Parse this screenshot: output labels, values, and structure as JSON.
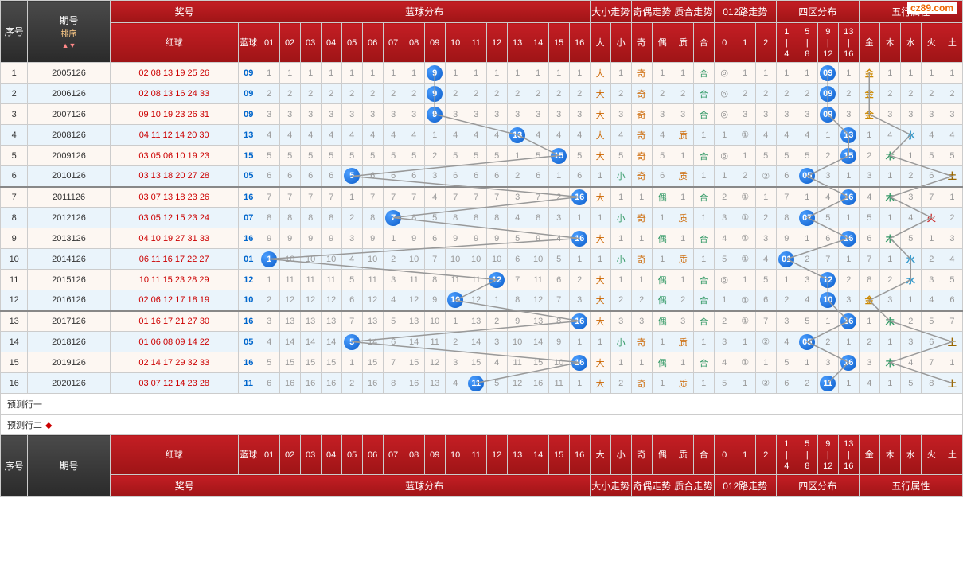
{
  "watermark": "cz89.com",
  "header": {
    "seq": "序号",
    "period": "期号",
    "sort": "排序",
    "jianghao": "奖号",
    "red": "红球",
    "blue": "蓝球",
    "bluedist": "蓝球分布",
    "daxiao": "大小走势",
    "jiou": "奇偶走势",
    "zhihe": "质合走势",
    "lu012": "012路走势",
    "siqu": "四区分布",
    "wuxing": "五行属性",
    "da": "大",
    "xiao": "小",
    "ji": "奇",
    "ou": "偶",
    "zhi": "质",
    "he": "合",
    "q1": "1\n|\n4",
    "q2": "5\n|\n8",
    "q3": "9\n|\n12",
    "q4": "13\n|\n16",
    "jin": "金",
    "mu": "木",
    "shui": "水",
    "huo": "火",
    "tu": "土",
    "pred1": "预测行一",
    "pred2": "预测行二"
  },
  "cols": {
    "blue": [
      "01",
      "02",
      "03",
      "04",
      "05",
      "06",
      "07",
      "08",
      "09",
      "10",
      "11",
      "12",
      "13",
      "14",
      "15",
      "16"
    ],
    "lu": [
      "0",
      "1",
      "2"
    ]
  },
  "rows": [
    {
      "seq": 1,
      "period": "2005126",
      "red": "02 08 13 19 25 26",
      "blue": "09",
      "ball": 9,
      "dx": "大",
      "jo": "奇",
      "zh": "合",
      "lu": 0,
      "quad": 3,
      "wx": "金"
    },
    {
      "seq": 2,
      "period": "2006126",
      "red": "02 08 13 16 24 33",
      "blue": "09",
      "ball": 9,
      "dx": "大",
      "jo": "奇",
      "zh": "合",
      "lu": 0,
      "quad": 3,
      "wx": "金"
    },
    {
      "seq": 3,
      "period": "2007126",
      "red": "09 10 19 23 26 31",
      "blue": "09",
      "ball": 9,
      "dx": "大",
      "jo": "奇",
      "zh": "合",
      "lu": 0,
      "quad": 3,
      "wx": "金"
    },
    {
      "seq": 4,
      "period": "2008126",
      "red": "04 11 12 14 20 30",
      "blue": "13",
      "ball": 13,
      "dx": "大",
      "jo": "奇",
      "zh": "质",
      "lu": 1,
      "quad": 4,
      "wx": "水"
    },
    {
      "seq": 5,
      "period": "2009126",
      "red": "03 05 06 10 19 23",
      "blue": "15",
      "ball": 15,
      "dx": "大",
      "jo": "奇",
      "zh": "合",
      "lu": 0,
      "quad": 4,
      "wx": "木"
    },
    {
      "seq": 6,
      "period": "2010126",
      "red": "03 13 18 20 27 28",
      "blue": "05",
      "ball": 5,
      "dx": "小",
      "jo": "奇",
      "zh": "质",
      "lu": 2,
      "quad": 2,
      "wx": "土"
    },
    {
      "seq": 7,
      "period": "2011126",
      "red": "03 07 13 18 23 26",
      "blue": "16",
      "ball": 16,
      "dx": "大",
      "jo": "偶",
      "zh": "合",
      "lu": 1,
      "quad": 4,
      "wx": "木"
    },
    {
      "seq": 8,
      "period": "2012126",
      "red": "03 05 12 15 23 24",
      "blue": "07",
      "ball": 7,
      "dx": "小",
      "jo": "奇",
      "zh": "质",
      "lu": 1,
      "quad": 2,
      "wx": "火"
    },
    {
      "seq": 9,
      "period": "2013126",
      "red": "04 10 19 27 31 33",
      "blue": "16",
      "ball": 16,
      "dx": "大",
      "jo": "偶",
      "zh": "合",
      "lu": 1,
      "quad": 4,
      "wx": "木"
    },
    {
      "seq": 10,
      "period": "2014126",
      "red": "06 11 16 17 22 27",
      "blue": "01",
      "ball": 1,
      "dx": "小",
      "jo": "奇",
      "zh": "质",
      "lu": 1,
      "quad": 1,
      "wx": "水"
    },
    {
      "seq": 11,
      "period": "2015126",
      "red": "10 11 15 23 28 29",
      "blue": "12",
      "ball": 12,
      "dx": "大",
      "jo": "偶",
      "zh": "合",
      "lu": 0,
      "quad": 3,
      "wx": "水"
    },
    {
      "seq": 12,
      "period": "2016126",
      "red": "02 06 12 17 18 19",
      "blue": "10",
      "ball": 10,
      "dx": "大",
      "jo": "偶",
      "zh": "合",
      "lu": 1,
      "quad": 3,
      "wx": "金"
    },
    {
      "seq": 13,
      "period": "2017126",
      "red": "01 16 17 21 27 30",
      "blue": "16",
      "ball": 16,
      "dx": "大",
      "jo": "偶",
      "zh": "合",
      "lu": 1,
      "quad": 4,
      "wx": "木"
    },
    {
      "seq": 14,
      "period": "2018126",
      "red": "01 06 08 09 14 22",
      "blue": "05",
      "ball": 5,
      "dx": "小",
      "jo": "奇",
      "zh": "质",
      "lu": 2,
      "quad": 2,
      "wx": "土"
    },
    {
      "seq": 15,
      "period": "2019126",
      "red": "02 14 17 29 32 33",
      "blue": "16",
      "ball": 16,
      "dx": "大",
      "jo": "偶",
      "zh": "合",
      "lu": 1,
      "quad": 4,
      "wx": "木"
    },
    {
      "seq": 16,
      "period": "2020126",
      "red": "03 07 12 14 23 28",
      "blue": "11",
      "ball": 11,
      "dx": "大",
      "jo": "奇",
      "zh": "质",
      "lu": 2,
      "quad": 3,
      "wx": "土"
    }
  ],
  "colors": {
    "header_grad_top": "#c41e24",
    "header_grad_bot": "#9e1416",
    "dark_top": "#4a4a4a",
    "dark_bot": "#2a2a2a",
    "row_odd": "#fdf7f2",
    "row_even": "#eaf4fb",
    "ball_top": "#4a9eff",
    "ball_bot": "#0b5cc9",
    "line": "#999",
    "red_text": "#c00",
    "blue_text": "#06c",
    "da": "#c60",
    "xiao": "#396"
  },
  "wx_class": {
    "金": "g",
    "木": "m",
    "水": "s",
    "火": "h",
    "土": "t"
  }
}
